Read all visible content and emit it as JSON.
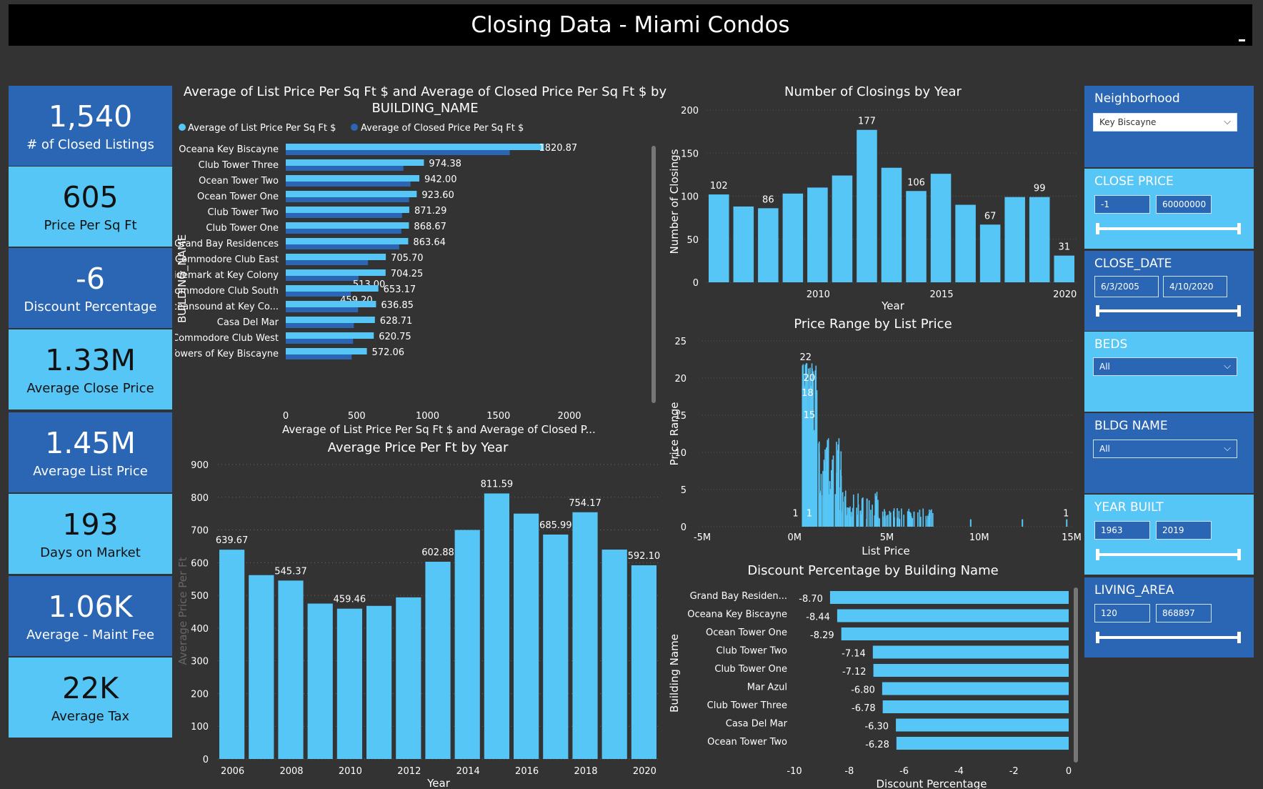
{
  "dashboard": {
    "title": "Closing Data - Miami Condos"
  },
  "kpis": [
    {
      "value": "1,540",
      "label": "# of Closed Listings",
      "style": "dark"
    },
    {
      "value": "605",
      "label": "Price Per Sq Ft",
      "style": "light"
    },
    {
      "value": "-6",
      "label": "Discount Percentage",
      "style": "dark"
    },
    {
      "value": "1.33M",
      "label": "Average Close Price",
      "style": "light"
    },
    {
      "value": "1.45M",
      "label": "Average List Price",
      "style": "dark"
    },
    {
      "value": "193",
      "label": "Days on Market",
      "style": "light"
    },
    {
      "value": "1.06K",
      "label": "Average - Maint Fee",
      "style": "dark"
    },
    {
      "value": "22K",
      "label": "Average Tax",
      "style": "light"
    }
  ],
  "slicers": {
    "neighborhood": {
      "title": "Neighborhood",
      "value": "Key Biscayne"
    },
    "close_price": {
      "title": "CLOSE PRICE",
      "min": "-1",
      "max": "60000000"
    },
    "close_date": {
      "title": "CLOSE_DATE",
      "min": "6/3/2005",
      "max": "4/10/2020"
    },
    "beds": {
      "title": "BEDS",
      "value": "All"
    },
    "bldg_name": {
      "title": "BLDG NAME",
      "value": "All"
    },
    "year_built": {
      "title": "YEAR BUILT",
      "min": "1963",
      "max": "2019"
    },
    "living_area": {
      "title": "LIVING_AREA",
      "min": "120",
      "max": "868897"
    }
  },
  "colors": {
    "light": "#56C6F6",
    "dark": "#2A66B4",
    "title_bg": "#000000",
    "page_bg": "#333333"
  },
  "chart_data": [
    {
      "id": "list_vs_closed",
      "type": "bar",
      "orientation": "horizontal",
      "title": "Average of List Price Per Sq Ft $ and Average of Closed Price Per Sq Ft $ by BUILDING_NAME",
      "title_lines": [
        "Average of List Price Per Sq Ft $ and Average of Closed Price Per Sq Ft $ by",
        "BUILDING_NAME"
      ],
      "xlabel": "Average of List Price Per Sq Ft $ and Average of Closed P...",
      "ylabel": "BUILDING_NAME",
      "xlim": [
        0,
        2000
      ],
      "xticks": [
        0,
        500,
        1000,
        1500,
        2000
      ],
      "categories": [
        "Oceana Key Biscayne",
        "Club Tower Three",
        "Ocean Tower Two",
        "Ocean Tower One",
        "Club Tower Two",
        "Club Tower One",
        "Grand Bay Residences",
        "Commodore Club East",
        "Tidemark at Key Colony",
        "Commodore Club South",
        "Oceansound at Key Co...",
        "Casa Del Mar",
        "Commodore Club West",
        "Towers of Key Biscayne"
      ],
      "series": [
        {
          "name": "Average of List Price Per Sq Ft $",
          "color": "#56C6F6",
          "values": [
            1820.87,
            974.38,
            942.0,
            923.6,
            871.29,
            868.67,
            863.64,
            705.7,
            704.25,
            653.17,
            636.85,
            628.71,
            620.75,
            572.06
          ],
          "labels": [
            "1820.87",
            "974.38",
            "942.00",
            "923.60",
            "871.29",
            "868.67",
            "863.64",
            "705.70",
            "704.25",
            "653.17",
            "636.85",
            "628.71",
            "620.75",
            "572.06"
          ]
        },
        {
          "name": "Average of Closed Price Per Sq Ft $",
          "color": "#2A66B4",
          "values": [
            1580,
            830,
            880,
            870,
            820,
            815,
            800,
            580,
            513.0,
            459.2,
            510,
            480,
            475,
            465
          ],
          "labels": [
            "",
            "",
            "",
            "",
            "",
            "",
            "",
            "",
            "513.00",
            "459.20",
            "",
            "",
            "",
            ""
          ]
        }
      ],
      "legend": "top-left"
    },
    {
      "id": "closings_by_year",
      "type": "bar",
      "title": "Number of Closings by Year",
      "xlabel": "Year",
      "ylabel": "Number of Closings",
      "ylim": [
        0,
        200
      ],
      "yticks": [
        0,
        50,
        100,
        150,
        200
      ],
      "x": [
        2006,
        2007,
        2008,
        2009,
        2010,
        2011,
        2012,
        2013,
        2014,
        2015,
        2016,
        2017,
        2018,
        2019,
        2020
      ],
      "xtick_labels": [
        "2010",
        "2015",
        "2020"
      ],
      "values": [
        102,
        88,
        86,
        103,
        110,
        124,
        177,
        133,
        106,
        126,
        90,
        67,
        99,
        99,
        31
      ],
      "labels": [
        "102",
        "",
        "86",
        "",
        "",
        "",
        "177",
        "",
        "106",
        "",
        "",
        "67",
        "",
        "99",
        "31"
      ]
    },
    {
      "id": "price_range",
      "type": "bar",
      "title": "Price Range by List Price",
      "xlabel": "List Price",
      "ylabel": "Price Range",
      "xlim": [
        -5,
        15
      ],
      "x_units": "M",
      "xtick_labels": [
        "-5M",
        "0M",
        "5M",
        "10M",
        "15M"
      ],
      "ylim": [
        0,
        25
      ],
      "yticks": [
        0,
        5,
        10,
        15,
        20,
        25
      ],
      "peak_labels": [
        "22",
        "20",
        "18",
        "15",
        "1",
        "1",
        "1"
      ]
    },
    {
      "id": "avg_price_per_ft_by_year",
      "type": "bar",
      "title": "Average Price Per Ft by Year",
      "xlabel": "Year",
      "ylabel": "Average Price Per Ft",
      "ylim": [
        0,
        900
      ],
      "yticks": [
        0,
        100,
        200,
        300,
        400,
        500,
        600,
        700,
        800,
        900
      ],
      "x": [
        2006,
        2007,
        2008,
        2009,
        2010,
        2011,
        2012,
        2013,
        2014,
        2015,
        2016,
        2017,
        2018,
        2019,
        2020
      ],
      "xtick_labels": [
        "2006",
        "2008",
        "2010",
        "2012",
        "2014",
        "2016",
        "2018",
        "2020"
      ],
      "values": [
        639.67,
        562,
        545.37,
        475,
        459.46,
        468,
        494,
        602.88,
        700,
        811.59,
        750,
        685.99,
        754.17,
        640,
        592.1
      ],
      "labels": [
        "639.67",
        "",
        "545.37",
        "",
        "459.46",
        "",
        "",
        "602.88",
        "",
        "811.59",
        "",
        "685.99",
        "754.17",
        "",
        "592.10"
      ]
    },
    {
      "id": "discount_by_building",
      "type": "bar",
      "orientation": "horizontal",
      "title": "Discount Percentage by Building Name",
      "xlabel": "Discount Percentage",
      "ylabel": "Building Name",
      "xlim": [
        -10,
        0
      ],
      "xticks": [
        -10,
        -8,
        -6,
        -4,
        -2,
        0
      ],
      "categories": [
        "Grand Bay Residen...",
        "Oceana Key Biscayne",
        "Ocean Tower One",
        "Club Tower Two",
        "Club Tower One",
        "Mar Azul",
        "Club Tower Three",
        "Casa Del Mar",
        "Ocean Tower Two"
      ],
      "values": [
        -8.7,
        -8.44,
        -8.29,
        -7.14,
        -7.12,
        -6.8,
        -6.78,
        -6.3,
        -6.28
      ],
      "labels": [
        "-8.70",
        "-8.44",
        "-8.29",
        "-7.14",
        "-7.12",
        "-6.80",
        "-6.78",
        "-6.30",
        "-6.28"
      ]
    }
  ]
}
